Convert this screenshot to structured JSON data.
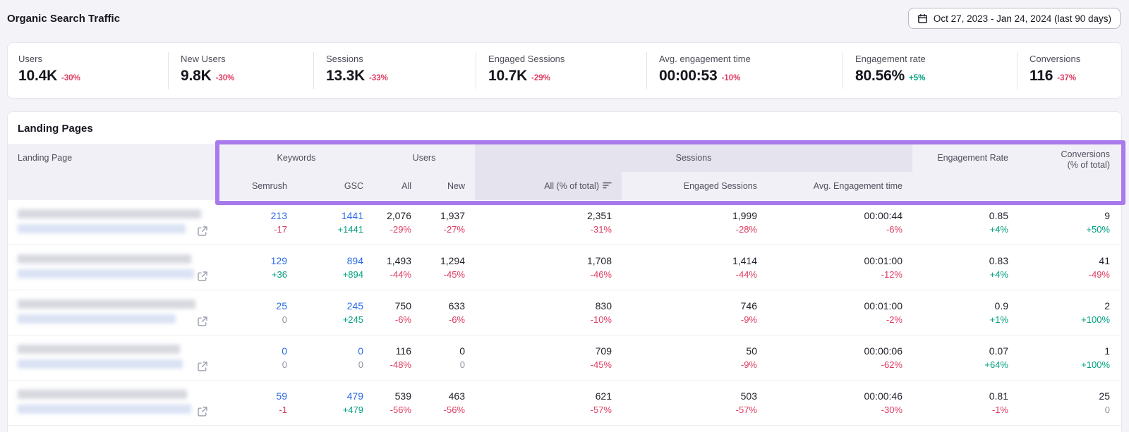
{
  "page": {
    "title": "Organic Search Traffic",
    "date_range": "Oct 27, 2023 - Jan 24, 2024 (last 90 days)"
  },
  "colors": {
    "accent_purple": "#a97aec",
    "positive_green": "#009f7f",
    "negative_red": "#dd3a5f",
    "link_blue": "#2b6ce5",
    "neutral_gray": "#90909e"
  },
  "icons": {
    "date_picker": "calendar-icon",
    "sessions_sort": "sort-descending-icon",
    "landing_page_link": "external-link-icon"
  },
  "metrics": [
    {
      "label": "Users",
      "value": "10.4K",
      "change": "-30%"
    },
    {
      "label": "New Users",
      "value": "9.8K",
      "change": "-30%"
    },
    {
      "label": "Sessions",
      "value": "13.3K",
      "change": "-33%"
    },
    {
      "label": "Engaged Sessions",
      "value": "10.7K",
      "change": "-29%"
    },
    {
      "label": "Avg. engagement time",
      "value": "00:00:53",
      "change": "-10%"
    },
    {
      "label": "Engagement rate",
      "value": "80.56%",
      "change": "+5%"
    },
    {
      "label": "Conversions",
      "value": "116",
      "change": "-37%"
    }
  ],
  "table": {
    "title": "Landing Pages",
    "head": {
      "landing_page": "Landing Page",
      "keywords": "Keywords",
      "users": "Users",
      "sessions": "Sessions",
      "engagement_rate": "Engagement Rate",
      "conversions_line1": "Conversions",
      "conversions_line2": "(% of total)",
      "semrush": "Semrush",
      "gsc": "GSC",
      "all": "All",
      "new": "New",
      "sessions_all": "All (% of total)",
      "engaged_sessions": "Engaged Sessions",
      "avg_engagement_time": "Avg. Engagement time"
    },
    "rows": [
      {
        "landing_page_redacted": true,
        "cells": [
          {
            "v": "213",
            "c": "-17"
          },
          {
            "v": "1441",
            "c": "+1441"
          },
          {
            "v": "2,076",
            "c": "-29%"
          },
          {
            "v": "1,937",
            "c": "-27%"
          },
          {
            "v": "2,351",
            "c": "-31%"
          },
          {
            "v": "1,999",
            "c": "-28%"
          },
          {
            "v": "00:00:44",
            "c": "-6%"
          },
          {
            "v": "0.85",
            "c": "+4%"
          },
          {
            "v": "9",
            "c": "+50%"
          }
        ]
      },
      {
        "landing_page_redacted": true,
        "cells": [
          {
            "v": "129",
            "c": "+36"
          },
          {
            "v": "894",
            "c": "+894"
          },
          {
            "v": "1,493",
            "c": "-44%"
          },
          {
            "v": "1,294",
            "c": "-45%"
          },
          {
            "v": "1,708",
            "c": "-46%"
          },
          {
            "v": "1,414",
            "c": "-44%"
          },
          {
            "v": "00:01:00",
            "c": "-12%"
          },
          {
            "v": "0.83",
            "c": "+4%"
          },
          {
            "v": "41",
            "c": "-49%"
          }
        ]
      },
      {
        "landing_page_redacted": true,
        "cells": [
          {
            "v": "25",
            "c": "0"
          },
          {
            "v": "245",
            "c": "+245"
          },
          {
            "v": "750",
            "c": "-6%"
          },
          {
            "v": "633",
            "c": "-6%"
          },
          {
            "v": "830",
            "c": "-10%"
          },
          {
            "v": "746",
            "c": "-9%"
          },
          {
            "v": "00:01:00",
            "c": "-2%"
          },
          {
            "v": "0.9",
            "c": "+1%"
          },
          {
            "v": "2",
            "c": "+100%"
          }
        ]
      },
      {
        "landing_page_redacted": true,
        "cells": [
          {
            "v": "0",
            "c": "0"
          },
          {
            "v": "0",
            "c": "0"
          },
          {
            "v": "116",
            "c": "-48%"
          },
          {
            "v": "0",
            "c": "0"
          },
          {
            "v": "709",
            "c": "-45%"
          },
          {
            "v": "50",
            "c": "-9%"
          },
          {
            "v": "00:00:06",
            "c": "-62%"
          },
          {
            "v": "0.07",
            "c": "+64%"
          },
          {
            "v": "1",
            "c": "+100%"
          }
        ]
      },
      {
        "landing_page_redacted": true,
        "cells": [
          {
            "v": "59",
            "c": "-1"
          },
          {
            "v": "479",
            "c": "+479"
          },
          {
            "v": "539",
            "c": "-56%"
          },
          {
            "v": "463",
            "c": "-56%"
          },
          {
            "v": "621",
            "c": "-57%"
          },
          {
            "v": "503",
            "c": "-57%"
          },
          {
            "v": "00:00:46",
            "c": "-30%"
          },
          {
            "v": "0.81",
            "c": "-1%"
          },
          {
            "v": "25",
            "c": "0"
          }
        ]
      }
    ]
  }
}
